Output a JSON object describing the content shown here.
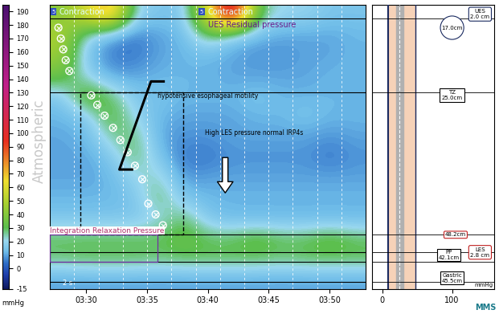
{
  "chart_data": {
    "type": "heatmap",
    "x_edges": [
      207,
      209,
      211,
      213,
      215,
      217,
      219,
      221,
      223,
      225,
      227,
      229,
      231,
      233
    ],
    "y_edges": [
      -15,
      0,
      15,
      30,
      45,
      60,
      75,
      90,
      105,
      120,
      135,
      150,
      165,
      180,
      195
    ],
    "cells": [
      [
        10,
        10,
        10,
        10,
        10,
        10,
        10,
        10,
        10,
        10,
        10,
        10,
        10
      ],
      [
        28,
        30,
        30,
        30,
        28,
        30,
        30,
        30,
        30,
        28,
        30,
        30,
        30
      ],
      [
        30,
        30,
        30,
        30,
        30,
        35,
        30,
        30,
        35,
        30,
        30,
        35,
        30
      ],
      [
        15,
        15,
        15,
        15,
        20,
        30,
        15,
        12,
        12,
        12,
        12,
        12,
        12
      ],
      [
        12,
        12,
        12,
        15,
        30,
        15,
        12,
        12,
        12,
        12,
        12,
        12,
        12
      ],
      [
        10,
        10,
        12,
        20,
        25,
        8,
        10,
        10,
        10,
        10,
        10,
        10,
        10
      ],
      [
        10,
        10,
        15,
        30,
        15,
        5,
        5,
        8,
        8,
        8,
        8,
        5,
        8
      ],
      [
        10,
        12,
        25,
        30,
        10,
        8,
        8,
        10,
        10,
        10,
        10,
        8,
        10
      ],
      [
        12,
        15,
        35,
        20,
        12,
        10,
        10,
        10,
        12,
        12,
        15,
        12,
        12
      ],
      [
        15,
        40,
        30,
        15,
        15,
        12,
        12,
        12,
        15,
        12,
        12,
        12,
        12
      ],
      [
        35,
        20,
        10,
        10,
        12,
        12,
        12,
        10,
        10,
        10,
        10,
        12,
        12
      ],
      [
        45,
        15,
        5,
        5,
        10,
        12,
        12,
        10,
        8,
        8,
        10,
        10,
        12
      ],
      [
        50,
        20,
        10,
        5,
        10,
        12,
        30,
        15,
        12,
        10,
        10,
        10,
        12
      ],
      [
        40,
        60,
        80,
        20,
        15,
        15,
        60,
        120,
        30,
        20,
        20,
        15,
        15
      ]
    ],
    "xlim": [
      207,
      233
    ],
    "ylim": [
      -15,
      195
    ],
    "xticks": [
      {
        "value": 210,
        "label": "03:30"
      },
      {
        "value": 215,
        "label": "03:35"
      },
      {
        "value": 220,
        "label": "03:40"
      },
      {
        "value": 225,
        "label": "03:45"
      },
      {
        "value": 230,
        "label": "03:50"
      }
    ],
    "tick_labels": "x",
    "grid": true,
    "color_range": [
      -15,
      195
    ],
    "color_ticks": [
      -15,
      0,
      10,
      20,
      30,
      40,
      50,
      60,
      70,
      80,
      90,
      100,
      110,
      120,
      130,
      140,
      150,
      160,
      170,
      180,
      190
    ],
    "color_label": "Atmospheric",
    "color_unit": "mmHg",
    "contraction_points": {
      "x": [
        207.7,
        207.9,
        208.1,
        208.3,
        208.6,
        210.4,
        210.9,
        211.5,
        212.2,
        212.8,
        213.4,
        214.0,
        214.6,
        215.1,
        215.7,
        216.3
      ],
      "y": [
        178,
        170,
        162,
        154,
        146,
        128,
        121,
        113,
        104,
        95,
        86,
        76,
        66,
        48,
        40,
        32
      ]
    },
    "reference_lines": [
      185,
      130,
      25,
      12,
      5,
      -10
    ],
    "box": {
      "x": [
        209.5,
        218
      ],
      "y": [
        25,
        130
      ]
    },
    "annotations": [
      "Contraction",
      "5",
      "Contraction",
      "5",
      "UES Residual pressure",
      "hypotensive esophageal motility",
      "High LES pressure normal IRP4s",
      "Integration Relaxation Pressure",
      "2 s"
    ],
    "anatomy": {
      "xlim": [
        -15,
        160
      ],
      "xticks": [
        0,
        100
      ],
      "xlabel": "mmHg",
      "labels": [
        "UES\n2.0 cm",
        "17.0cm",
        "TZ\n25.0cm",
        "48.2cm",
        "PP\n42.1cm",
        "LES\n2.8 cm",
        "Gastric\n45.5cm"
      ]
    },
    "logo": "MMS"
  }
}
